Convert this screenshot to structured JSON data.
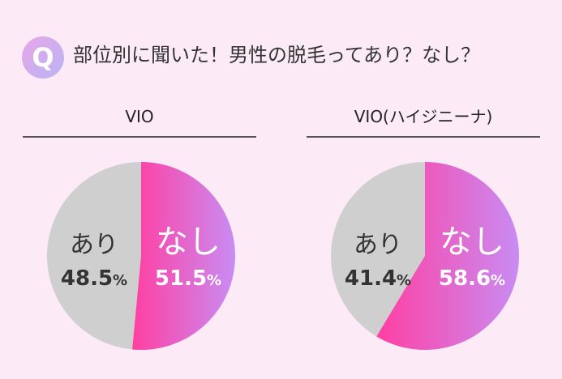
{
  "header": {
    "badge_letter": "Q",
    "question": "部位別に聞いた！男性の脱毛ってあり？なし？"
  },
  "colors": {
    "background": "#fcebf6",
    "ari_slice": "#cfcfcf",
    "nashi_gradient_start": "#ff3fa2",
    "nashi_gradient_end": "#c98cf3",
    "badge_start": "#e7a6e7",
    "badge_end": "#b9b4f5"
  },
  "chart_data": [
    {
      "type": "pie",
      "title": "VIO",
      "slices": [
        {
          "label": "あり",
          "value": 48.5,
          "value_text": "48.5",
          "unit": "%"
        },
        {
          "label": "なし",
          "value": 51.5,
          "value_text": "51.5",
          "unit": "%"
        }
      ]
    },
    {
      "type": "pie",
      "title": "VIO(ハイジニーナ)",
      "slices": [
        {
          "label": "あり",
          "value": 41.4,
          "value_text": "41.4",
          "unit": "%"
        },
        {
          "label": "なし",
          "value": 58.6,
          "value_text": "58.6",
          "unit": "%"
        }
      ]
    }
  ]
}
